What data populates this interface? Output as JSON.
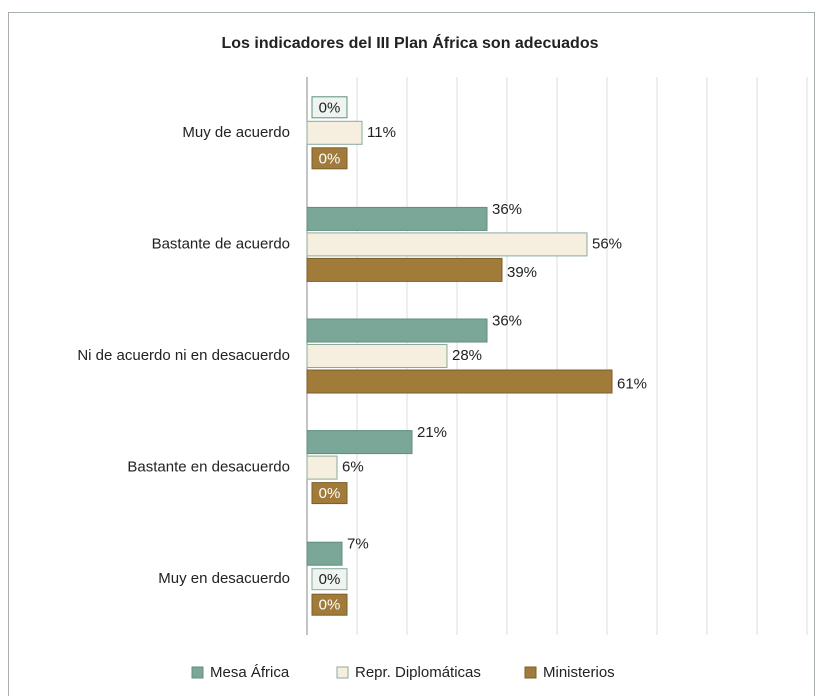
{
  "chart_data": {
    "type": "hbar",
    "title": "Los indicadores del III Plan África son adecuados",
    "categories": [
      "Muy de acuerdo",
      "Bastante de acuerdo",
      "Ni de acuerdo ni en desacuerdo",
      "Bastante en desacuerdo",
      "Muy en desacuerdo"
    ],
    "series": [
      {
        "name": "Mesa África",
        "color": "#7ba798",
        "values": [
          0,
          36,
          36,
          21,
          7
        ],
        "value_labels": [
          "0%",
          "36%",
          "36%",
          "21%",
          "7%"
        ]
      },
      {
        "name": "Repr. Diplomáticas",
        "color": "#f6efdf",
        "values": [
          11,
          56,
          28,
          6,
          0
        ],
        "value_labels": [
          "11%",
          "56%",
          "28%",
          "6%",
          "0%"
        ]
      },
      {
        "name": "Ministerios",
        "color": "#a17b3a",
        "values": [
          0,
          39,
          61,
          0,
          0
        ],
        "value_labels": [
          "0%",
          "39%",
          "61%",
          "0%",
          "0%"
        ]
      }
    ],
    "xlim": [
      0,
      100
    ],
    "xticks": [
      0,
      10,
      20,
      30,
      40,
      50,
      60,
      70,
      80,
      90,
      100
    ],
    "grid": true,
    "legend": "bottom"
  }
}
